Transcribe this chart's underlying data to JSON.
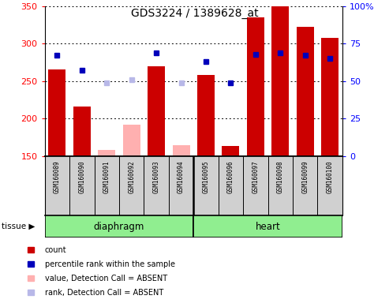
{
  "title": "GDS3224 / 1389628_at",
  "samples": [
    "GSM160089",
    "GSM160090",
    "GSM160091",
    "GSM160092",
    "GSM160093",
    "GSM160094",
    "GSM160095",
    "GSM160096",
    "GSM160097",
    "GSM160098",
    "GSM160099",
    "GSM160100"
  ],
  "count_values": [
    265,
    216,
    null,
    null,
    270,
    null,
    258,
    163,
    335,
    350,
    322,
    308
  ],
  "count_absent": [
    null,
    null,
    158,
    192,
    null,
    165,
    null,
    null,
    null,
    null,
    null,
    null
  ],
  "rank_present_pct": [
    67,
    57,
    null,
    null,
    69,
    null,
    63,
    49,
    68,
    69,
    67,
    65
  ],
  "rank_absent_pct": [
    null,
    null,
    49,
    51,
    null,
    49,
    null,
    null,
    null,
    null,
    null,
    null
  ],
  "ylim_left": [
    150,
    350
  ],
  "ylim_right": [
    0,
    100
  ],
  "yticks_left": [
    150,
    200,
    250,
    300,
    350
  ],
  "yticks_right": [
    0,
    25,
    50,
    75,
    100
  ],
  "color_count": "#cc0000",
  "color_rank": "#0000bb",
  "color_absent_value": "#ffb0b0",
  "color_absent_rank": "#b8b8e8",
  "diaphragm_count": 6,
  "heart_count": 6
}
